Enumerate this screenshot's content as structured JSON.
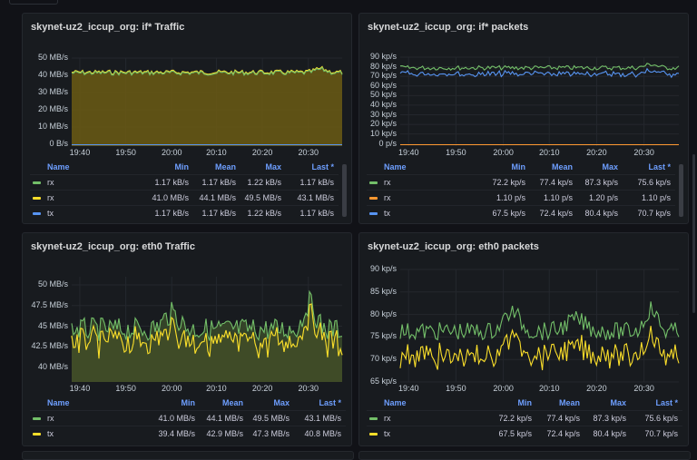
{
  "colors": {
    "green": "#73bf69",
    "yellow": "#fade2a",
    "blue": "#5794f2",
    "orange": "#ff9830",
    "fillyellow": "#6b5a14",
    "fillgreen": "#3a4a2a"
  },
  "x_ticks": [
    "19:40",
    "19:50",
    "20:00",
    "20:10",
    "20:20",
    "20:30"
  ],
  "legend_headers": {
    "name": "Name",
    "min": "Min",
    "mean": "Mean",
    "max": "Max",
    "last": "Last *"
  },
  "panels": [
    {
      "title": "skynet-uz2_iccup_org: if* Traffic",
      "y_ticks": [
        "50 MB/s",
        "40 MB/s",
        "30 MB/s",
        "20 MB/s",
        "10 MB/s",
        "0 B/s"
      ],
      "rows": [
        {
          "name": "rx",
          "color": "green",
          "min": "1.17 kB/s",
          "mean": "1.17 kB/s",
          "max": "1.22 kB/s",
          "last": "1.17 kB/s"
        },
        {
          "name": "rx",
          "color": "yellow",
          "min": "41.0 MB/s",
          "mean": "44.1 MB/s",
          "max": "49.5 MB/s",
          "last": "43.1 MB/s"
        },
        {
          "name": "tx",
          "color": "blue",
          "min": "1.17 kB/s",
          "mean": "1.17 kB/s",
          "max": "1.22 kB/s",
          "last": "1.17 kB/s"
        }
      ]
    },
    {
      "title": "skynet-uz2_iccup_org: if* packets",
      "y_ticks": [
        "90 kp/s",
        "80 kp/s",
        "70 kp/s",
        "60 kp/s",
        "50 kp/s",
        "40 kp/s",
        "30 kp/s",
        "20 kp/s",
        "10 kp/s",
        "0 p/s"
      ],
      "rows": [
        {
          "name": "rx",
          "color": "green",
          "min": "72.2 kp/s",
          "mean": "77.4 kp/s",
          "max": "87.3 kp/s",
          "last": "75.6 kp/s"
        },
        {
          "name": "rx",
          "color": "orange",
          "min": "1.10 p/s",
          "mean": "1.10 p/s",
          "max": "1.20 p/s",
          "last": "1.10 p/s"
        },
        {
          "name": "tx",
          "color": "blue",
          "min": "67.5 kp/s",
          "mean": "72.4 kp/s",
          "max": "80.4 kp/s",
          "last": "70.7 kp/s"
        }
      ]
    },
    {
      "title": "skynet-uz2_iccup_org: eth0 Traffic",
      "y_ticks": [
        "50 MB/s",
        "47.5 MB/s",
        "45 MB/s",
        "42.5 MB/s",
        "40 MB/s"
      ],
      "rows": [
        {
          "name": "rx",
          "color": "green",
          "min": "41.0 MB/s",
          "mean": "44.1 MB/s",
          "max": "49.5 MB/s",
          "last": "43.1 MB/s"
        },
        {
          "name": "tx",
          "color": "yellow",
          "min": "39.4 MB/s",
          "mean": "42.9 MB/s",
          "max": "47.3 MB/s",
          "last": "40.8 MB/s"
        }
      ]
    },
    {
      "title": "skynet-uz2_iccup_org: eth0 packets",
      "y_ticks": [
        "90 kp/s",
        "85 kp/s",
        "80 kp/s",
        "75 kp/s",
        "70 kp/s",
        "65 kp/s"
      ],
      "rows": [
        {
          "name": "rx",
          "color": "green",
          "min": "72.2 kp/s",
          "mean": "77.4 kp/s",
          "max": "87.3 kp/s",
          "last": "75.6 kp/s"
        },
        {
          "name": "tx",
          "color": "yellow",
          "min": "67.5 kp/s",
          "mean": "72.4 kp/s",
          "max": "80.4 kp/s",
          "last": "70.7 kp/s"
        }
      ]
    }
  ]
}
